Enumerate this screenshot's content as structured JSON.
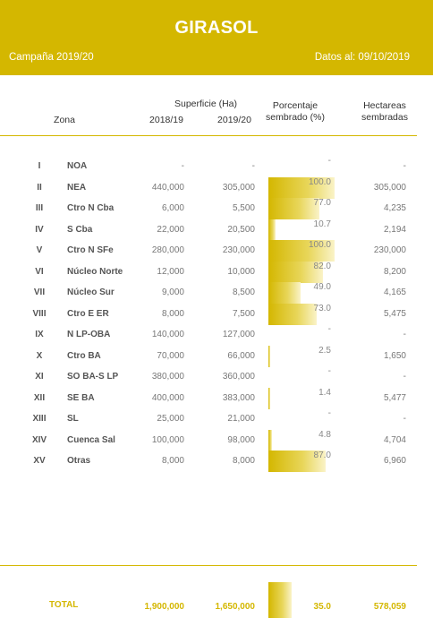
{
  "header": {
    "title": "GIRASOL",
    "campaign": "Campaña 2019/20",
    "date": "Datos al: 09/10/2019"
  },
  "columns": {
    "zona": "Zona",
    "superficie": "Superficie (Ha)",
    "y1": "2018/19",
    "y2": "2019/20",
    "pct_line1": "Porcentaje",
    "pct_line2": "sembrado (%)",
    "ha_line1": "Hectareas",
    "ha_line2": "sembradas"
  },
  "rows": [
    {
      "num": "I",
      "zona": "NOA",
      "s1": "-",
      "s2": "-",
      "pct": "-",
      "pct_value": 0,
      "ha": "-"
    },
    {
      "num": "II",
      "zona": "NEA",
      "s1": "440,000",
      "s2": "305,000",
      "pct": "100.0",
      "pct_value": 100.0,
      "ha": "305,000"
    },
    {
      "num": "III",
      "zona": "Ctro N Cba",
      "s1": "6,000",
      "s2": "5,500",
      "pct": "77.0",
      "pct_value": 77.0,
      "ha": "4,235"
    },
    {
      "num": "IV",
      "zona": "S Cba",
      "s1": "22,000",
      "s2": "20,500",
      "pct": "10.7",
      "pct_value": 10.7,
      "ha": "2,194"
    },
    {
      "num": "V",
      "zona": "Ctro N SFe",
      "s1": "280,000",
      "s2": "230,000",
      "pct": "100.0",
      "pct_value": 100.0,
      "ha": "230,000"
    },
    {
      "num": "VI",
      "zona": "Núcleo Norte",
      "s1": "12,000",
      "s2": "10,000",
      "pct": "82.0",
      "pct_value": 82.0,
      "ha": "8,200"
    },
    {
      "num": "VII",
      "zona": "Núcleo Sur",
      "s1": "9,000",
      "s2": "8,500",
      "pct": "49.0",
      "pct_value": 49.0,
      "ha": "4,165"
    },
    {
      "num": "VIII",
      "zona": "Ctro E ER",
      "s1": "8,000",
      "s2": "7,500",
      "pct": "73.0",
      "pct_value": 73.0,
      "ha": "5,475"
    },
    {
      "num": "IX",
      "zona": "N LP-OBA",
      "s1": "140,000",
      "s2": "127,000",
      "pct": "-",
      "pct_value": 0,
      "ha": "-"
    },
    {
      "num": "X",
      "zona": "Ctro BA",
      "s1": "70,000",
      "s2": "66,000",
      "pct": "2.5",
      "pct_value": 2.5,
      "ha": "1,650"
    },
    {
      "num": "XI",
      "zona": "SO BA-S LP",
      "s1": "380,000",
      "s2": "360,000",
      "pct": "-",
      "pct_value": 0,
      "ha": "-"
    },
    {
      "num": "XII",
      "zona": "SE BA",
      "s1": "400,000",
      "s2": "383,000",
      "pct": "1.4",
      "pct_value": 1.4,
      "ha": "5,477"
    },
    {
      "num": "XIII",
      "zona": "SL",
      "s1": "25,000",
      "s2": "21,000",
      "pct": "-",
      "pct_value": 0,
      "ha": "-"
    },
    {
      "num": "XIV",
      "zona": "Cuenca Sal",
      "s1": "100,000",
      "s2": "98,000",
      "pct": "4.8",
      "pct_value": 4.8,
      "ha": "4,704"
    },
    {
      "num": "XV",
      "zona": "Otras",
      "s1": "8,000",
      "s2": "8,000",
      "pct": "87.0",
      "pct_value": 87.0,
      "ha": "6,960"
    }
  ],
  "total": {
    "label": "TOTAL",
    "s1": "1,900,000",
    "s2": "1,650,000",
    "pct": "35.0",
    "pct_value": 35.0,
    "ha": "578,059"
  },
  "colors": {
    "accent": "#d4b700"
  }
}
